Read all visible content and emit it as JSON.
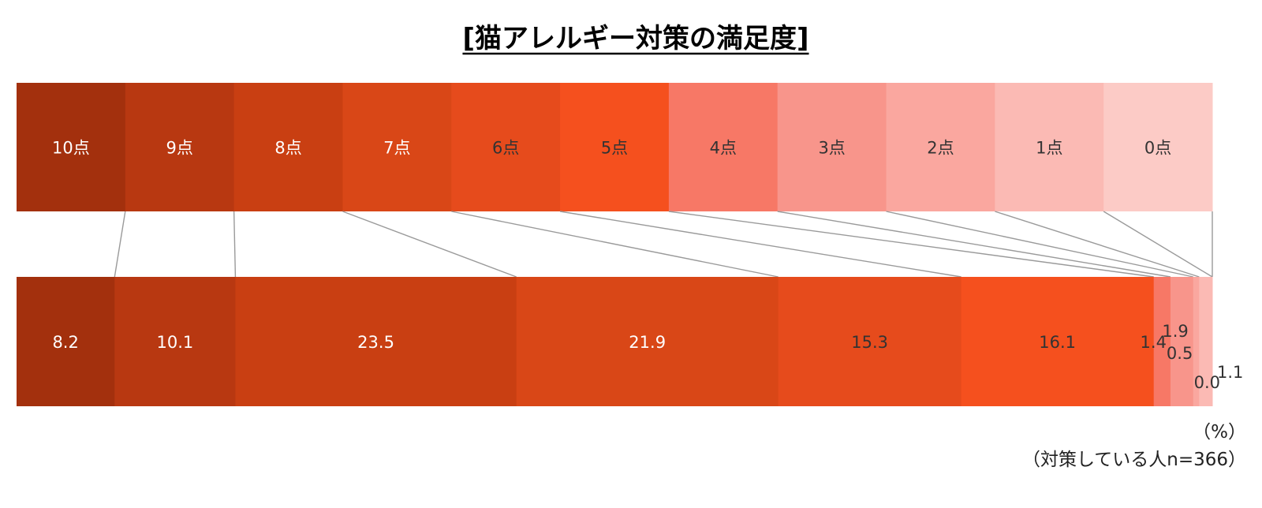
{
  "chart_data": {
    "type": "bar",
    "orientation": "horizontal",
    "stacked": true,
    "normalized_to": 100,
    "title": "[猫アレルギー対策の満足度]",
    "categories": [
      "10点",
      "9点",
      "8点",
      "7点",
      "6点",
      "5点",
      "4点",
      "3点",
      "2点",
      "1点",
      "0点"
    ],
    "values": [
      8.2,
      10.1,
      23.5,
      21.9,
      15.3,
      16.1,
      1.4,
      1.9,
      0.5,
      1.1,
      0.0
    ],
    "colors": [
      "#a3300d",
      "#b83811",
      "#c93f12",
      "#d94717",
      "#e64b1c",
      "#f5501e",
      "#f77866",
      "#f8958b",
      "#faa79f",
      "#fbbab4",
      "#fccbc6"
    ],
    "category_label_colors": [
      "#ffffff",
      "#ffffff",
      "#ffffff",
      "#ffffff",
      "#333333",
      "#333333",
      "#333333",
      "#333333",
      "#333333",
      "#333333",
      "#333333"
    ],
    "value_label_colors": [
      "#ffffff",
      "#ffffff",
      "#ffffff",
      "#ffffff",
      "#333333",
      "#333333",
      "#333333",
      "#333333",
      "#333333",
      "#333333",
      "#333333"
    ],
    "legend_placement": "top-band",
    "unit_note": "（%）",
    "sample_note": "（対策している人n=366）"
  }
}
